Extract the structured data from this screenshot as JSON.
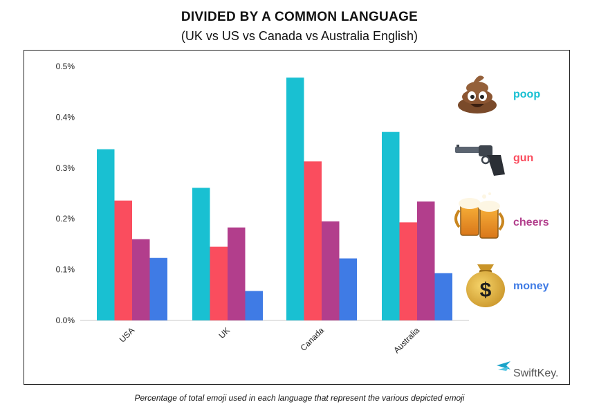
{
  "chart_data": {
    "type": "bar",
    "title": "DIVIDED BY A COMMON LANGUAGE",
    "subtitle": "(UK vs US vs Canada vs Australia English)",
    "caption": "Percentage of total emoji used in each language that represent the various depicted emoji",
    "categories": [
      "USA",
      "UK",
      "Canada",
      "Australia"
    ],
    "ylim": [
      0,
      0.5
    ],
    "yticks": [
      "0.0%",
      "0.1%",
      "0.2%",
      "0.3%",
      "0.4%",
      "0.5%"
    ],
    "ytick_values": [
      0,
      0.1,
      0.2,
      0.3,
      0.4,
      0.5
    ],
    "grid": false,
    "legend_position": "right",
    "series": [
      {
        "name": "poop",
        "icon": "pile-of-poo-emoji",
        "color": "#19C0D2",
        "values": [
          0.337,
          0.261,
          0.478,
          0.371
        ]
      },
      {
        "name": "gun",
        "icon": "pistol-emoji",
        "color": "#FA4D5E",
        "values": [
          0.236,
          0.145,
          0.313,
          0.193
        ]
      },
      {
        "name": "cheers",
        "icon": "beer-mugs-emoji",
        "color": "#B23E8C",
        "values": [
          0.16,
          0.183,
          0.195,
          0.234
        ]
      },
      {
        "name": "money",
        "icon": "money-bag-emoji",
        "color": "#3F7BE5",
        "values": [
          0.123,
          0.058,
          0.122,
          0.093
        ]
      }
    ]
  },
  "branding": {
    "logo_text": "SwiftKey.",
    "logo_icon": "swiftkey-logo-icon",
    "logo_color": "#1AA3C9"
  }
}
